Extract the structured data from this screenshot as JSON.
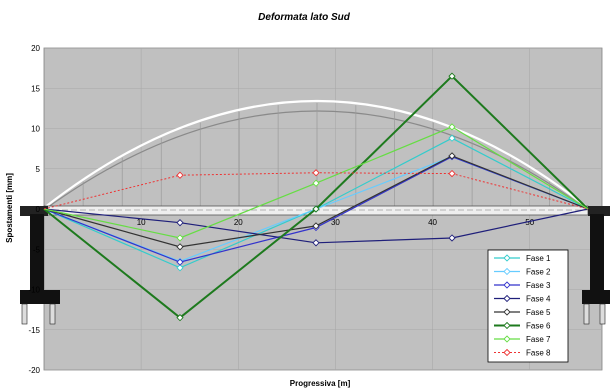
{
  "chart_data": {
    "type": "line",
    "title": "Deformata lato Sud",
    "xlabel": "Progressiva [m]",
    "ylabel": "Spostamenti [mm]",
    "xlim": [
      0,
      57
    ],
    "ylim": [
      -20,
      20
    ],
    "x_ticks": [
      10,
      20,
      30,
      40,
      50
    ],
    "y_ticks": [
      20,
      15,
      10,
      5,
      0,
      -5,
      -10,
      -15,
      -20
    ],
    "grid": true,
    "legend_position": "bottom-right",
    "series": [
      {
        "name": "Fase 1",
        "color": "#33CCCC",
        "dash": false,
        "width": 1.2,
        "x": [
          0,
          14,
          28,
          42,
          56
        ],
        "y": [
          0,
          -7.3,
          0,
          8.8,
          0
        ]
      },
      {
        "name": "Fase 2",
        "color": "#66CCFF",
        "dash": false,
        "width": 1.2,
        "x": [
          0,
          14,
          28,
          42,
          56
        ],
        "y": [
          0,
          -6.5,
          0,
          6.5,
          0
        ]
      },
      {
        "name": "Fase 3",
        "color": "#3333CC",
        "dash": false,
        "width": 1.2,
        "x": [
          0,
          14,
          28,
          42,
          56
        ],
        "y": [
          0,
          -6.6,
          -2.3,
          6.5,
          0
        ]
      },
      {
        "name": "Fase 4",
        "color": "#1F1F7A",
        "dash": false,
        "width": 1.2,
        "x": [
          0,
          14,
          28,
          42,
          56
        ],
        "y": [
          0,
          -1.7,
          -4.2,
          -3.6,
          0
        ]
      },
      {
        "name": "Fase 5",
        "color": "#333333",
        "dash": false,
        "width": 1.2,
        "x": [
          0,
          14,
          28,
          42,
          56
        ],
        "y": [
          0,
          -4.7,
          -2.1,
          6.6,
          0
        ]
      },
      {
        "name": "Fase 6",
        "color": "#1E7A1E",
        "dash": false,
        "width": 2.0,
        "x": [
          0,
          14,
          28,
          42,
          56
        ],
        "y": [
          0,
          -13.5,
          0,
          16.5,
          0
        ]
      },
      {
        "name": "Fase 7",
        "color": "#66DD44",
        "dash": false,
        "width": 1.2,
        "x": [
          0,
          14,
          28,
          42,
          56
        ],
        "y": [
          0,
          -3.6,
          3.2,
          10.2,
          0
        ]
      },
      {
        "name": "Fase 8",
        "color": "#EE3333",
        "dash": true,
        "width": 1.0,
        "x": [
          0,
          14,
          28,
          42,
          56
        ],
        "y": [
          0,
          4.2,
          4.5,
          4.4,
          0
        ]
      }
    ]
  }
}
